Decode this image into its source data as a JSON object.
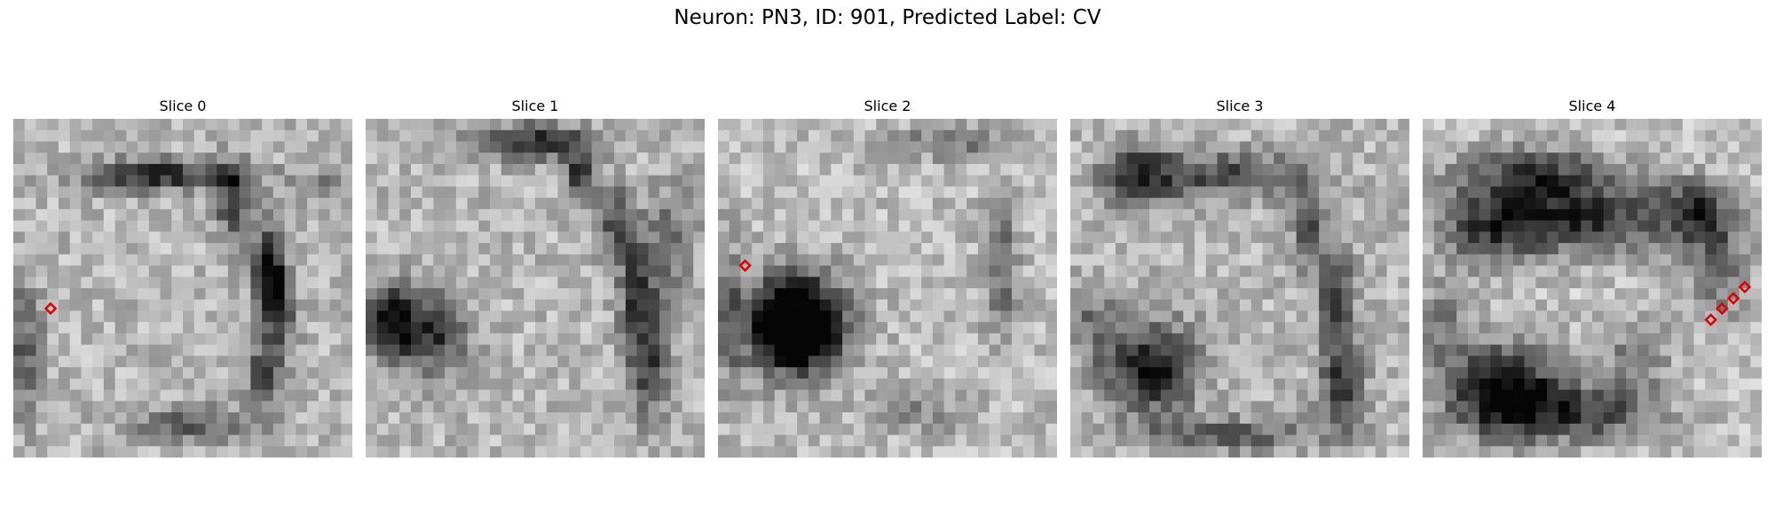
{
  "figure": {
    "title": "Neuron: PN3, ID: 901, Predicted Label: CV"
  },
  "marker_color": "#e00000",
  "slices": [
    {
      "title": "Slice 0",
      "marker_count": 1
    },
    {
      "title": "Slice 1",
      "marker_count": 0
    },
    {
      "title": "Slice 2",
      "marker_count": 1
    },
    {
      "title": "Slice 3",
      "marker_count": 0
    },
    {
      "title": "Slice 4",
      "marker_count": 4
    }
  ]
}
